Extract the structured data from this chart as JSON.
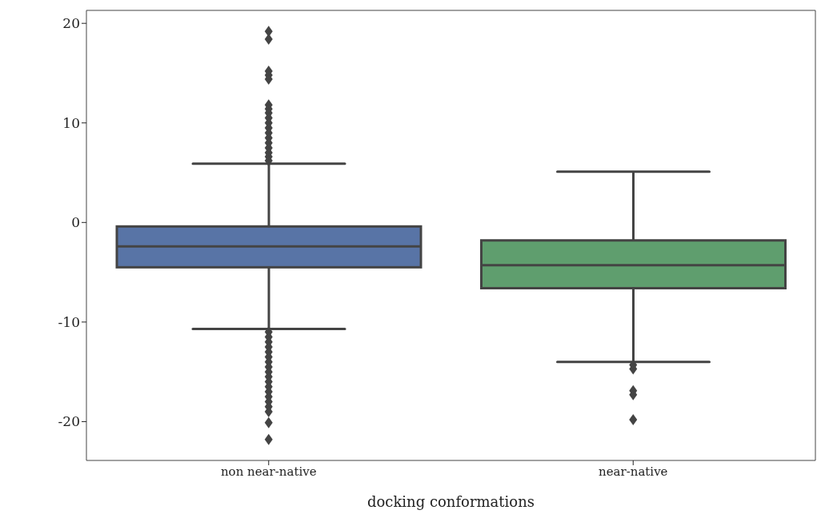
{
  "chart_data": {
    "type": "box",
    "xlabel": "docking conformations",
    "categories": [
      "non near-native",
      "near-native"
    ],
    "colors": [
      "#5874a6",
      "#5f9e6e"
    ],
    "boxes": [
      {
        "low": -10.7,
        "q1": -4.5,
        "median": -2.4,
        "q3": -0.4,
        "high": 5.9,
        "outliers": [
          19.2,
          18.4,
          15.2,
          14.8,
          14.4,
          11.8,
          11.4,
          11,
          10.5,
          10,
          9.5,
          9,
          8.5,
          8,
          7.5,
          7,
          6.6,
          6.2,
          -11,
          -11.5,
          -12,
          -12.5,
          -13,
          -13.5,
          -14,
          -14.5,
          -15,
          -15.5,
          -16,
          -16.5,
          -17,
          -17.5,
          -18,
          -18.5,
          -19,
          -20.1,
          -21.8
        ]
      },
      {
        "low": -14.0,
        "q1": -6.6,
        "median": -4.3,
        "q3": -1.8,
        "high": 5.1,
        "outliers": [
          -14.3,
          -14.7,
          -16.9,
          -17.3,
          -19.8
        ]
      }
    ],
    "marker": "diamond",
    "ylim": [
      -23.9,
      21.3
    ],
    "yticks": [
      -20,
      -10,
      0,
      10,
      20
    ]
  }
}
